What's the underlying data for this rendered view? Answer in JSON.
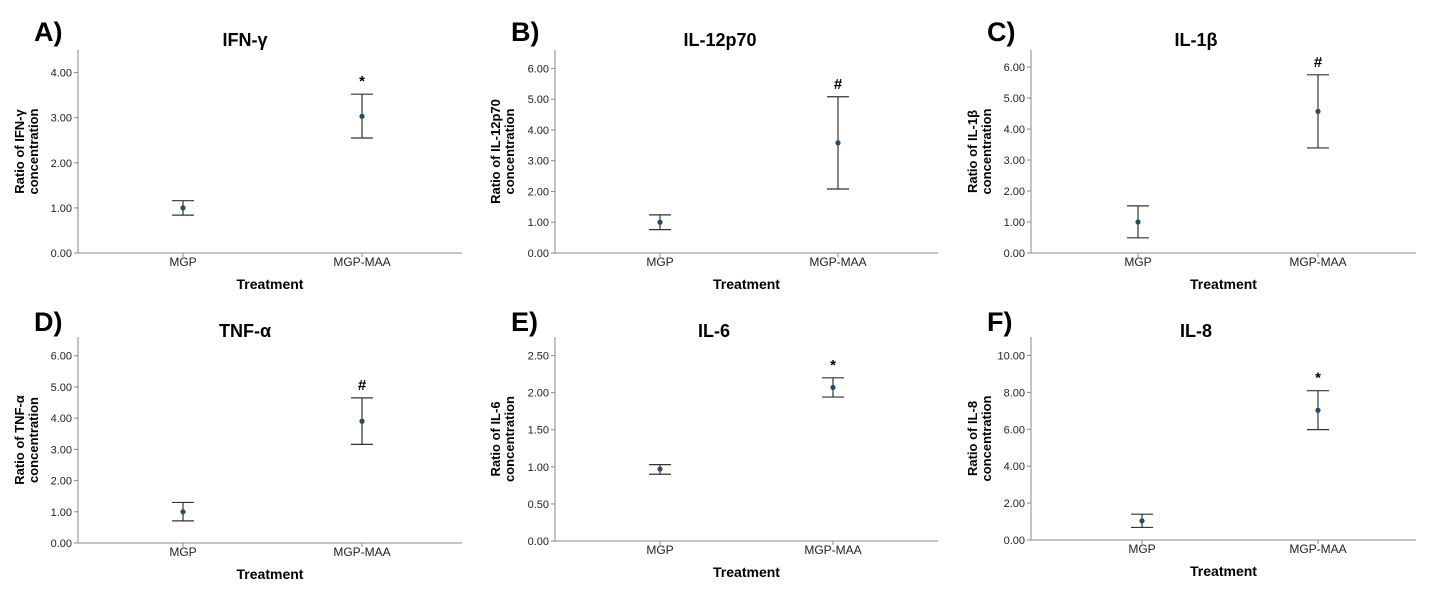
{
  "chart_data": [
    {
      "type": "scatter",
      "panel": "A)",
      "title": "IFN-γ",
      "xlabel": "Treatment",
      "ylabel_lines": [
        "Ratio of IFN-γ",
        "concentration"
      ],
      "ylim": [
        0,
        4.5
      ],
      "yticks": [
        "0.00",
        "1.00",
        "2.00",
        "3.00",
        "4.00"
      ],
      "ytick_values": [
        0,
        1,
        2,
        3,
        4
      ],
      "categories": [
        "MGP",
        "MGP-MAA"
      ],
      "means": [
        1.0,
        3.03
      ],
      "lower": [
        0.84,
        2.55
      ],
      "upper": [
        1.16,
        3.52
      ],
      "annotations": [
        "",
        "*"
      ]
    },
    {
      "type": "scatter",
      "panel": "B)",
      "title": "IL-12p70",
      "xlabel": "Treatment",
      "ylabel_lines": [
        "Ratio of IL-12p70",
        "concentration"
      ],
      "ylim": [
        0,
        6.6
      ],
      "yticks": [
        "0.00",
        "1.00",
        "2.00",
        "3.00",
        "4.00",
        "5.00",
        "6.00"
      ],
      "ytick_values": [
        0,
        1,
        2,
        3,
        4,
        5,
        6
      ],
      "categories": [
        "MGP",
        "MGP-MAA"
      ],
      "means": [
        1.0,
        3.58
      ],
      "lower": [
        0.76,
        2.08
      ],
      "upper": [
        1.24,
        5.08
      ],
      "annotations": [
        "",
        "#"
      ]
    },
    {
      "type": "scatter",
      "panel": "C)",
      "title": "IL-1β",
      "xlabel": "Treatment",
      "ylabel_lines": [
        "Ratio of IL-1β",
        "concentration"
      ],
      "ylim": [
        0,
        6.55
      ],
      "yticks": [
        "0.00",
        "1.00",
        "2.00",
        "3.00",
        "4.00",
        "5.00",
        "6.00"
      ],
      "ytick_values": [
        0,
        1,
        2,
        3,
        4,
        5,
        6
      ],
      "categories": [
        "MGP",
        "MGP-MAA"
      ],
      "means": [
        1.0,
        4.57
      ],
      "lower": [
        0.49,
        3.39
      ],
      "upper": [
        1.52,
        5.75
      ],
      "annotations": [
        "",
        "#"
      ]
    },
    {
      "type": "scatter",
      "panel": "D)",
      "title": "TNF-α",
      "xlabel": "Treatment",
      "ylabel_lines": [
        "Ratio of TNF-α",
        "concentration"
      ],
      "ylim": [
        0,
        6.6
      ],
      "yticks": [
        "0.00",
        "1.00",
        "2.00",
        "3.00",
        "4.00",
        "5.00",
        "6.00"
      ],
      "ytick_values": [
        0,
        1,
        2,
        3,
        4,
        5,
        6
      ],
      "categories": [
        "MGP",
        "MGP-MAA"
      ],
      "means": [
        1.0,
        3.9
      ],
      "lower": [
        0.71,
        3.16
      ],
      "upper": [
        1.3,
        4.65
      ],
      "annotations": [
        "",
        "#"
      ]
    },
    {
      "type": "scatter",
      "panel": "E)",
      "title": "IL-6",
      "xlabel": "Treatment",
      "ylabel_lines": [
        "Ratio of IL-6",
        "concentration"
      ],
      "ylim": [
        0,
        2.75
      ],
      "yticks": [
        "0.00",
        "0.50",
        "1.00",
        "1.50",
        "2.00",
        "2.50"
      ],
      "ytick_values": [
        0,
        0.5,
        1,
        1.5,
        2,
        2.5
      ],
      "categories": [
        "MGP",
        "MGP-MAA"
      ],
      "means": [
        0.97,
        2.07
      ],
      "lower": [
        0.9,
        1.94
      ],
      "upper": [
        1.03,
        2.2
      ],
      "annotations": [
        "",
        "*"
      ]
    },
    {
      "type": "scatter",
      "panel": "F)",
      "title": "IL-8",
      "xlabel": "Treatment",
      "ylabel_lines": [
        "Ratio of IL-8",
        "concentration"
      ],
      "ylim": [
        0,
        11
      ],
      "yticks": [
        "0.00",
        "2.00",
        "4.00",
        "6.00",
        "8.00",
        "10.00"
      ],
      "ytick_values": [
        0,
        2,
        4,
        6,
        8,
        10
      ],
      "categories": [
        "MGP",
        "MGP-MAA"
      ],
      "means": [
        1.04,
        7.03
      ],
      "lower": [
        0.68,
        5.98
      ],
      "upper": [
        1.4,
        8.09
      ],
      "annotations": [
        "",
        "*"
      ]
    }
  ]
}
